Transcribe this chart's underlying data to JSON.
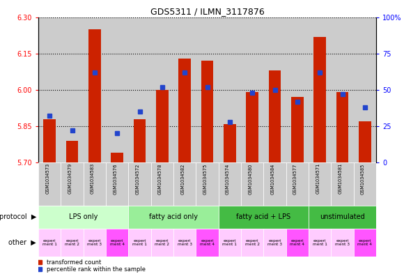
{
  "title": "GDS5311 / ILMN_3117876",
  "samples": [
    "GSM1034573",
    "GSM1034579",
    "GSM1034583",
    "GSM1034576",
    "GSM1034572",
    "GSM1034578",
    "GSM1034582",
    "GSM1034575",
    "GSM1034574",
    "GSM1034580",
    "GSM1034584",
    "GSM1034577",
    "GSM1034571",
    "GSM1034581",
    "GSM1034585"
  ],
  "red_values": [
    5.88,
    5.79,
    6.25,
    5.74,
    5.88,
    6.0,
    6.13,
    6.12,
    5.86,
    5.99,
    6.08,
    5.97,
    6.22,
    5.99,
    5.87
  ],
  "blue_values": [
    32,
    22,
    62,
    20,
    35,
    52,
    62,
    52,
    28,
    48,
    50,
    42,
    62,
    47,
    38
  ],
  "ylim_left": [
    5.7,
    6.3
  ],
  "ylim_right": [
    0,
    100
  ],
  "yticks_left": [
    5.7,
    5.85,
    6.0,
    6.15,
    6.3
  ],
  "yticks_right": [
    0,
    25,
    50,
    75,
    100
  ],
  "proto_groups": [
    {
      "label": "LPS only",
      "start": 0,
      "end": 4,
      "color": "#ccffcc"
    },
    {
      "label": "fatty acid only",
      "start": 4,
      "end": 8,
      "color": "#99ee99"
    },
    {
      "label": "fatty acid + LPS",
      "start": 8,
      "end": 12,
      "color": "#44bb44"
    },
    {
      "label": "unstimulated",
      "start": 12,
      "end": 15,
      "color": "#44bb44"
    }
  ],
  "other_colors": [
    "#ffccff",
    "#ffccff",
    "#ffccff",
    "#ff55ff",
    "#ffccff",
    "#ffccff",
    "#ffccff",
    "#ff55ff",
    "#ffccff",
    "#ffccff",
    "#ffccff",
    "#ff55ff",
    "#ffccff",
    "#ffccff",
    "#ff55ff"
  ],
  "other_labels": [
    "experi\nment 1",
    "experi\nment 2",
    "experi\nment 3",
    "experi\nment 4",
    "experi\nment 1",
    "experi\nment 2",
    "experi\nment 3",
    "experi\nment 4",
    "experi\nment 1",
    "experi\nment 2",
    "experi\nment 3",
    "experi\nment 4",
    "experi\nment 1",
    "experi\nment 3",
    "experi\nment 4"
  ],
  "bar_color": "#cc2200",
  "blue_color": "#2244cc",
  "sample_bg_color": "#cccccc"
}
